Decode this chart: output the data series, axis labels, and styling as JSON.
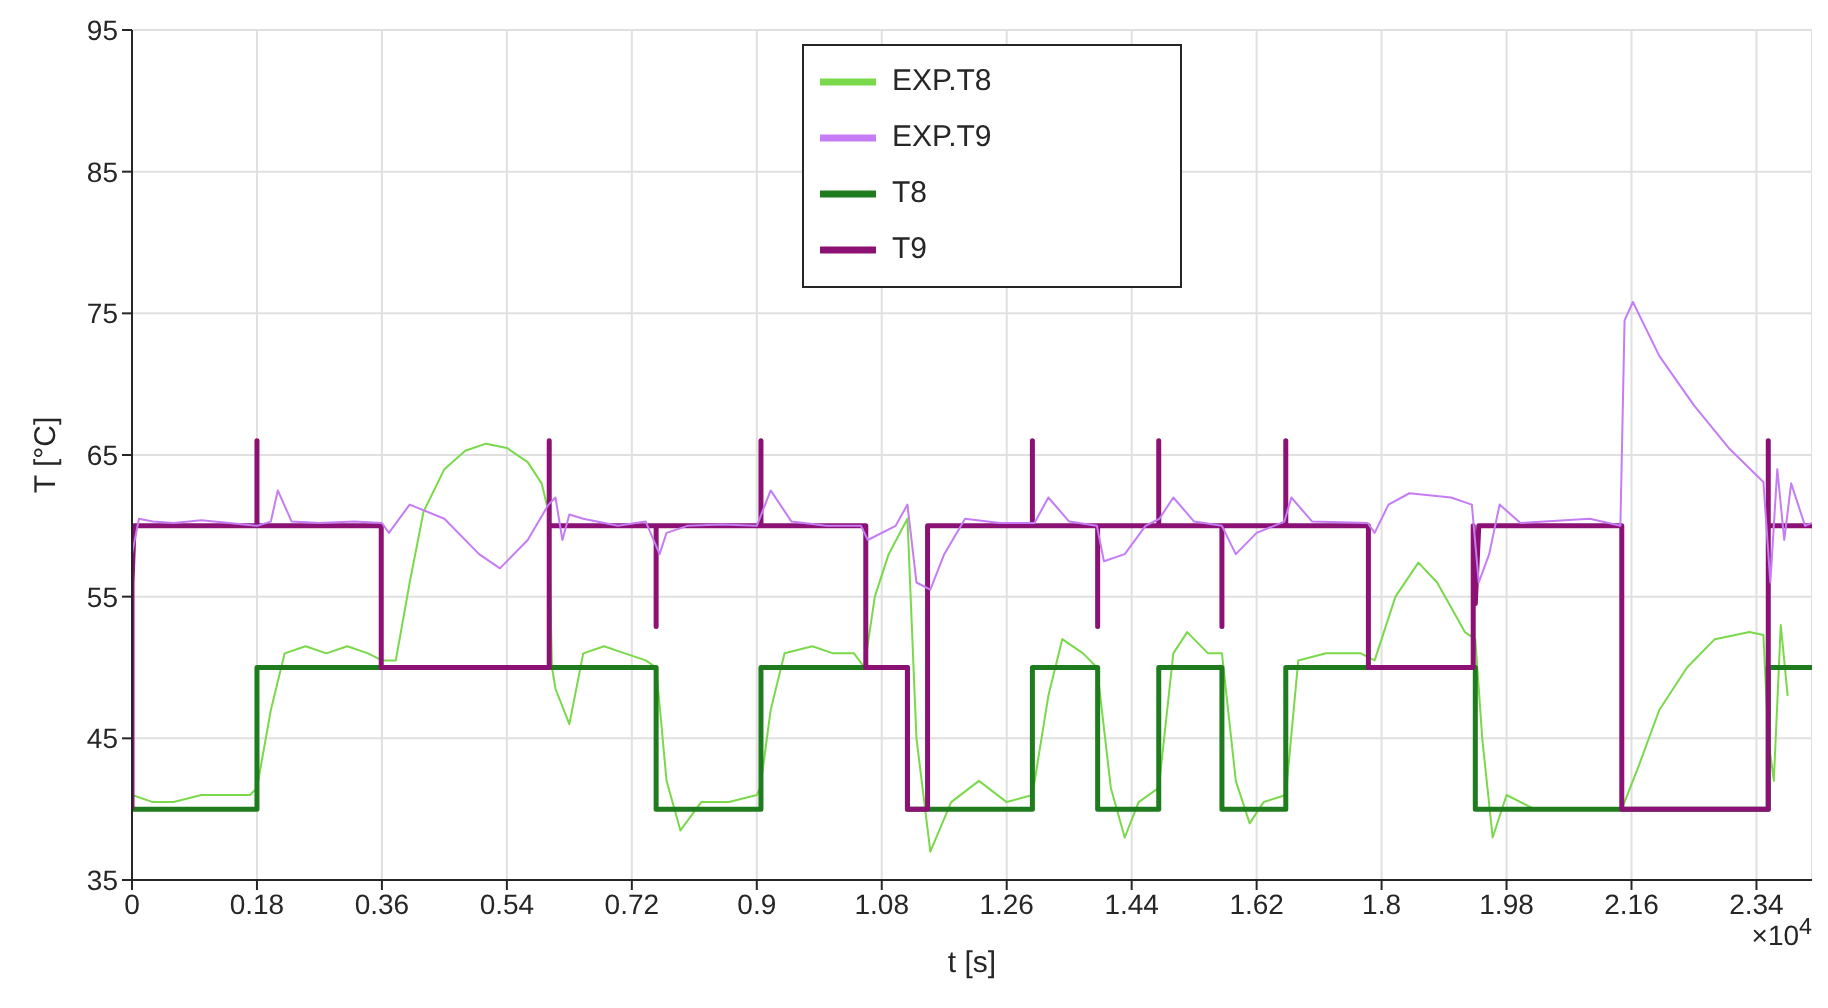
{
  "chart_data": {
    "type": "line",
    "xlabel": "t [s]",
    "ylabel": "T [°C]",
    "annotations": [
      "×10$^{4}$"
    ],
    "xlim": [
      0,
      2.42
    ],
    "xticks": [
      0,
      0.18,
      0.36,
      0.54,
      0.72,
      0.9,
      1.08,
      1.26,
      1.44,
      1.62,
      1.8,
      1.98,
      2.16,
      2.34
    ],
    "ylim": [
      35,
      95
    ],
    "yticks": [
      35,
      45,
      55,
      65,
      75,
      85,
      95
    ],
    "grid": true,
    "legend": "top",
    "marker": "none",
    "series": [
      {
        "name": "EXP.T8",
        "color": "#7ad94a",
        "x": [
          0,
          0.03,
          0.06,
          0.1,
          0.13,
          0.17,
          0.18,
          0.2,
          0.22,
          0.25,
          0.28,
          0.31,
          0.34,
          0.36,
          0.38,
          0.4,
          0.42,
          0.45,
          0.48,
          0.51,
          0.54,
          0.57,
          0.59,
          0.6,
          0.605,
          0.61,
          0.63,
          0.65,
          0.68,
          0.71,
          0.74,
          0.755,
          0.77,
          0.79,
          0.82,
          0.86,
          0.9,
          0.905,
          0.92,
          0.94,
          0.98,
          1.01,
          1.04,
          1.055,
          1.07,
          1.09,
          1.117,
          1.13,
          1.15,
          1.18,
          1.22,
          1.26,
          1.297,
          1.32,
          1.34,
          1.37,
          1.39,
          1.41,
          1.43,
          1.45,
          1.479,
          1.5,
          1.52,
          1.55,
          1.57,
          1.59,
          1.61,
          1.63,
          1.662,
          1.68,
          1.72,
          1.77,
          1.79,
          1.82,
          1.853,
          1.88,
          1.92,
          1.935,
          1.945,
          1.96,
          1.98,
          2.02,
          2.08,
          2.146,
          2.17,
          2.2,
          2.24,
          2.28,
          2.33,
          2.35,
          2.357,
          2.365,
          2.375,
          2.385
        ],
        "values": [
          41,
          40.5,
          40.5,
          41,
          41,
          41,
          41.5,
          47,
          51,
          51.5,
          51,
          51.5,
          51,
          50.5,
          50.5,
          56,
          61,
          64,
          65.3,
          65.8,
          65.5,
          64.5,
          63,
          61,
          50,
          48.5,
          46,
          51,
          51.5,
          51,
          50.5,
          50,
          42,
          38.5,
          40.5,
          40.5,
          41,
          41.5,
          47,
          51,
          51.5,
          51,
          51,
          50,
          55,
          58,
          60.5,
          45,
          37,
          40.5,
          42,
          40.5,
          41,
          48,
          52,
          51,
          50,
          41.5,
          38,
          40.5,
          41.5,
          51,
          52.5,
          51,
          51,
          42,
          39,
          40.5,
          41,
          50.5,
          51,
          51,
          50.5,
          55,
          57.4,
          56,
          52.5,
          52,
          45,
          38,
          41,
          40,
          40,
          40,
          43,
          47,
          50,
          52,
          52.5,
          52.3,
          45,
          42,
          53,
          48
        ]
      },
      {
        "name": "T8",
        "color": "#1e7b1e",
        "x": [
          0,
          0.18,
          0.18,
          0.755,
          0.755,
          0.906,
          0.906,
          1.117,
          1.117,
          1.297,
          1.297,
          1.391,
          1.391,
          1.479,
          1.479,
          1.57,
          1.57,
          1.662,
          1.662,
          1.935,
          1.935,
          2.357,
          2.357,
          2.42
        ],
        "values": [
          40,
          40,
          50,
          50,
          40,
          40,
          50,
          50,
          40,
          40,
          50,
          50,
          40,
          40,
          50,
          50,
          40,
          40,
          50,
          50,
          40,
          40,
          50,
          50
        ]
      },
      {
        "name": "T9",
        "color": "#8b1274",
        "x": [
          0,
          0,
          0.003,
          0.18,
          0.18,
          0.18,
          0.359,
          0.359,
          0.601,
          0.601,
          0.601,
          0.755,
          0.755,
          0.755,
          0.906,
          0.906,
          0.906,
          1.057,
          1.057,
          1.117,
          1.117,
          1.146,
          1.146,
          1.297,
          1.297,
          1.297,
          1.391,
          1.391,
          1.391,
          1.479,
          1.479,
          1.479,
          1.57,
          1.57,
          1.57,
          1.662,
          1.662,
          1.662,
          1.781,
          1.781,
          1.932,
          1.932,
          1.935,
          1.94,
          2.146,
          2.146,
          2.357,
          2.357,
          2.357,
          2.42
        ],
        "values": [
          40,
          56,
          60,
          60,
          66,
          60,
          60,
          50,
          50,
          66,
          60,
          60,
          52.9,
          60,
          60,
          66,
          60,
          60,
          50,
          50,
          40,
          40,
          60,
          60,
          66,
          60,
          60,
          52.9,
          60,
          60,
          66,
          60,
          60,
          52.9,
          60,
          60,
          66,
          60,
          60,
          50,
          50,
          60,
          54.5,
          60,
          60,
          40,
          40,
          66,
          60,
          60
        ]
      },
      {
        "name": "EXP.T9",
        "color": "#c57cf5",
        "x": [
          0,
          0.01,
          0.03,
          0.06,
          0.1,
          0.14,
          0.18,
          0.2,
          0.21,
          0.23,
          0.27,
          0.32,
          0.36,
          0.37,
          0.4,
          0.45,
          0.5,
          0.53,
          0.57,
          0.6,
          0.61,
          0.62,
          0.63,
          0.65,
          0.7,
          0.74,
          0.76,
          0.77,
          0.8,
          0.85,
          0.9,
          0.92,
          0.95,
          1.0,
          1.05,
          1.06,
          1.1,
          1.117,
          1.13,
          1.15,
          1.17,
          1.2,
          1.25,
          1.3,
          1.32,
          1.35,
          1.39,
          1.4,
          1.43,
          1.46,
          1.48,
          1.5,
          1.53,
          1.57,
          1.59,
          1.62,
          1.66,
          1.67,
          1.7,
          1.78,
          1.79,
          1.81,
          1.84,
          1.9,
          1.93,
          1.94,
          1.955,
          1.97,
          2.0,
          2.1,
          2.144,
          2.15,
          2.162,
          2.2,
          2.25,
          2.3,
          2.35,
          2.36,
          2.37,
          2.38,
          2.39,
          2.41,
          2.42
        ],
        "values": [
          58,
          60.5,
          60.3,
          60.2,
          60.4,
          60.2,
          60,
          60.3,
          62.5,
          60.3,
          60.2,
          60.3,
          60.2,
          59.5,
          61.5,
          60.5,
          58,
          57,
          59,
          61.5,
          62,
          59,
          60.8,
          60.5,
          60,
          60.3,
          58,
          59.5,
          60,
          60.1,
          60,
          62.5,
          60.3,
          60,
          60,
          59,
          60,
          61.5,
          56,
          55.5,
          58,
          60.5,
          60.2,
          60.2,
          62,
          60.3,
          60,
          57.5,
          58,
          60,
          60.5,
          62,
          60.3,
          60,
          58,
          59.5,
          60.3,
          62,
          60.3,
          60.2,
          59.5,
          61.5,
          62.3,
          62,
          61.5,
          56,
          58,
          61.5,
          60.2,
          60.5,
          60,
          74.5,
          75.8,
          72,
          68.5,
          65.5,
          63.1,
          56,
          64,
          59,
          63,
          60,
          60.2
        ]
      }
    ]
  }
}
